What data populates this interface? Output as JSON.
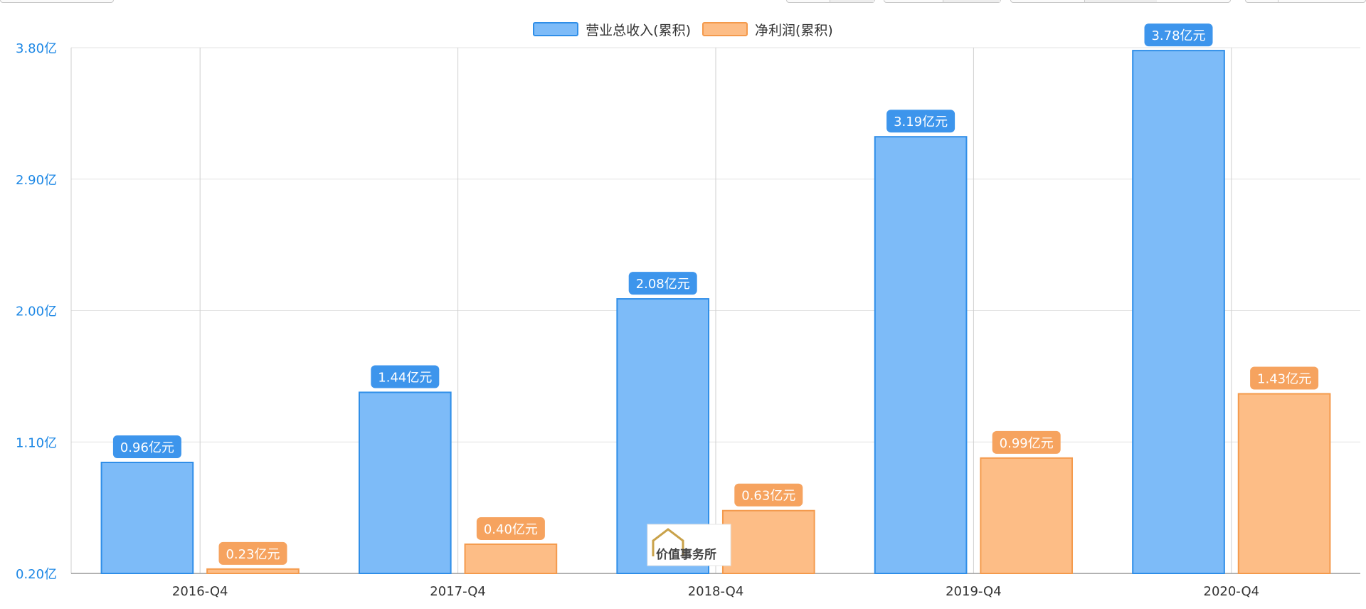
{
  "chart_data": {
    "type": "bar",
    "categories": [
      "2016-Q4",
      "2017-Q4",
      "2018-Q4",
      "2019-Q4",
      "2020-Q4"
    ],
    "series": [
      {
        "name": "营业总收入(累积)",
        "values": [
          0.96,
          1.44,
          2.08,
          3.19,
          3.78
        ],
        "labels": [
          "0.96亿元",
          "1.44亿元",
          "2.08亿元",
          "3.19亿元",
          "3.78亿元"
        ],
        "color": "#7dbbf8",
        "border": "#2f8ee8",
        "label_bg": "#3d95ec"
      },
      {
        "name": "净利润(累积)",
        "values": [
          0.23,
          0.4,
          0.63,
          0.99,
          1.43
        ],
        "labels": [
          "0.23亿元",
          "0.40亿元",
          "0.63亿元",
          "0.99亿元",
          "1.43亿元"
        ],
        "color": "#fdbd86",
        "border": "#f49a4c",
        "label_bg": "#f6a35f"
      }
    ],
    "ylim": [
      0.2,
      3.8
    ],
    "yticks": [
      0.2,
      1.1,
      2.0,
      2.9,
      3.8
    ],
    "ytick_labels": [
      "0.20亿",
      "1.10亿",
      "2.00亿",
      "2.90亿",
      "3.80亿"
    ],
    "legend_position": "top-center",
    "grid": true,
    "title": "",
    "xlabel": "",
    "ylabel": ""
  },
  "watermark": {
    "text": "价值事务所"
  }
}
